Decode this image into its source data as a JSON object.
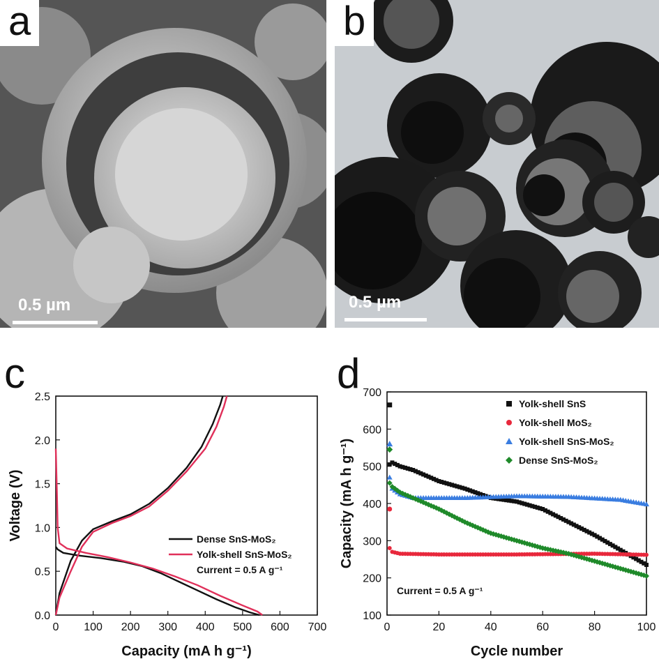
{
  "panels": {
    "a": {
      "letter": "a",
      "scale": "0.5 µm"
    },
    "b": {
      "letter": "b",
      "scale": "0.5 µm"
    },
    "c": {
      "letter": "c"
    },
    "d": {
      "letter": "d"
    }
  },
  "colors": {
    "black": "#111111",
    "pink": "#e0305a",
    "red": "#e8283c",
    "blue": "#3a7de0",
    "green": "#1f8a2a"
  },
  "chart_data": [
    {
      "type": "line",
      "panel": "c",
      "xlabel": "Capacity (mA h g⁻¹)",
      "ylabel": "Voltage (V)",
      "xlim": [
        0,
        700
      ],
      "ylim": [
        0,
        2.5
      ],
      "xticks": [
        "0",
        "100",
        "200",
        "300",
        "400",
        "500",
        "600",
        "700"
      ],
      "yticks": [
        "0.0",
        "0.5",
        "1.0",
        "1.5",
        "2.0",
        "2.5"
      ],
      "legend": [
        "Dense SnS-MoS₂",
        "Yolk-shell SnS-MoS₂"
      ],
      "annotation": "Current = 0.5 A g⁻¹",
      "series": [
        {
          "name": "Dense SnS-MoS₂",
          "color": "#111111",
          "discharge": [
            [
              0,
              0.78
            ],
            [
              5,
              0.75
            ],
            [
              20,
              0.71
            ],
            [
              60,
              0.68
            ],
            [
              120,
              0.65
            ],
            [
              180,
              0.61
            ],
            [
              230,
              0.56
            ],
            [
              280,
              0.48
            ],
            [
              330,
              0.38
            ],
            [
              380,
              0.28
            ],
            [
              430,
              0.18
            ],
            [
              480,
              0.09
            ],
            [
              520,
              0.03
            ],
            [
              545,
              0.0
            ]
          ],
          "charge": [
            [
              0,
              0.0
            ],
            [
              10,
              0.25
            ],
            [
              40,
              0.62
            ],
            [
              70,
              0.85
            ],
            [
              100,
              0.98
            ],
            [
              150,
              1.07
            ],
            [
              200,
              1.15
            ],
            [
              250,
              1.27
            ],
            [
              300,
              1.45
            ],
            [
              350,
              1.68
            ],
            [
              390,
              1.92
            ],
            [
              420,
              2.18
            ],
            [
              440,
              2.4
            ],
            [
              447,
              2.5
            ]
          ]
        },
        {
          "name": "Yolk-shell SnS-MoS₂",
          "color": "#e0305a",
          "discharge": [
            [
              0,
              1.9
            ],
            [
              3,
              1.4
            ],
            [
              5,
              1.0
            ],
            [
              10,
              0.82
            ],
            [
              30,
              0.76
            ],
            [
              80,
              0.71
            ],
            [
              140,
              0.66
            ],
            [
              200,
              0.6
            ],
            [
              260,
              0.53
            ],
            [
              320,
              0.44
            ],
            [
              380,
              0.34
            ],
            [
              440,
              0.22
            ],
            [
              500,
              0.11
            ],
            [
              540,
              0.04
            ],
            [
              553,
              0.0
            ]
          ],
          "charge": [
            [
              0,
              0.0
            ],
            [
              10,
              0.2
            ],
            [
              40,
              0.5
            ],
            [
              70,
              0.78
            ],
            [
              100,
              0.95
            ],
            [
              150,
              1.05
            ],
            [
              200,
              1.13
            ],
            [
              250,
              1.24
            ],
            [
              300,
              1.42
            ],
            [
              350,
              1.64
            ],
            [
              400,
              1.9
            ],
            [
              430,
              2.15
            ],
            [
              450,
              2.38
            ],
            [
              458,
              2.5
            ]
          ]
        }
      ]
    },
    {
      "type": "scatter",
      "panel": "d",
      "xlabel": "Cycle number",
      "ylabel": "Capacity (mA h g⁻¹)",
      "xlim": [
        0,
        100
      ],
      "ylim": [
        100,
        700
      ],
      "xticks": [
        "0",
        "20",
        "40",
        "60",
        "80",
        "100"
      ],
      "yticks": [
        "100",
        "200",
        "300",
        "400",
        "500",
        "600",
        "700"
      ],
      "legend_position": "top-right",
      "annotation": "Current = 0.5 A g⁻¹",
      "series": [
        {
          "name": "Yolk-shell SnS",
          "color": "#111111",
          "marker": "square",
          "first": 665,
          "points": [
            [
              1,
              505
            ],
            [
              2,
              510
            ],
            [
              5,
              500
            ],
            [
              10,
              490
            ],
            [
              20,
              460
            ],
            [
              30,
              440
            ],
            [
              40,
              415
            ],
            [
              50,
              405
            ],
            [
              60,
              385
            ],
            [
              70,
              350
            ],
            [
              80,
              315
            ],
            [
              90,
              275
            ],
            [
              100,
              235
            ]
          ]
        },
        {
          "name": "Yolk-shell MoS₂",
          "color": "#e8283c",
          "marker": "circle",
          "first": 385,
          "points": [
            [
              1,
              280
            ],
            [
              2,
              270
            ],
            [
              5,
              265
            ],
            [
              20,
              263
            ],
            [
              50,
              263
            ],
            [
              80,
              265
            ],
            [
              100,
              262
            ]
          ]
        },
        {
          "name": "Yolk-shell SnS-MoS₂",
          "color": "#3a7de0",
          "marker": "triangle",
          "first": 560,
          "points": [
            [
              1,
              470
            ],
            [
              2,
              440
            ],
            [
              5,
              425
            ],
            [
              10,
              415
            ],
            [
              30,
              415
            ],
            [
              50,
              420
            ],
            [
              70,
              418
            ],
            [
              90,
              410
            ],
            [
              100,
              398
            ]
          ]
        },
        {
          "name": "Dense SnS-MoS₂",
          "color": "#1f8a2a",
          "marker": "diamond",
          "first": 545,
          "points": [
            [
              1,
              455
            ],
            [
              2,
              445
            ],
            [
              5,
              430
            ],
            [
              10,
              415
            ],
            [
              20,
              385
            ],
            [
              30,
              350
            ],
            [
              40,
              320
            ],
            [
              50,
              300
            ],
            [
              60,
              280
            ],
            [
              70,
              265
            ],
            [
              80,
              245
            ],
            [
              90,
              225
            ],
            [
              100,
              205
            ]
          ]
        }
      ]
    }
  ]
}
